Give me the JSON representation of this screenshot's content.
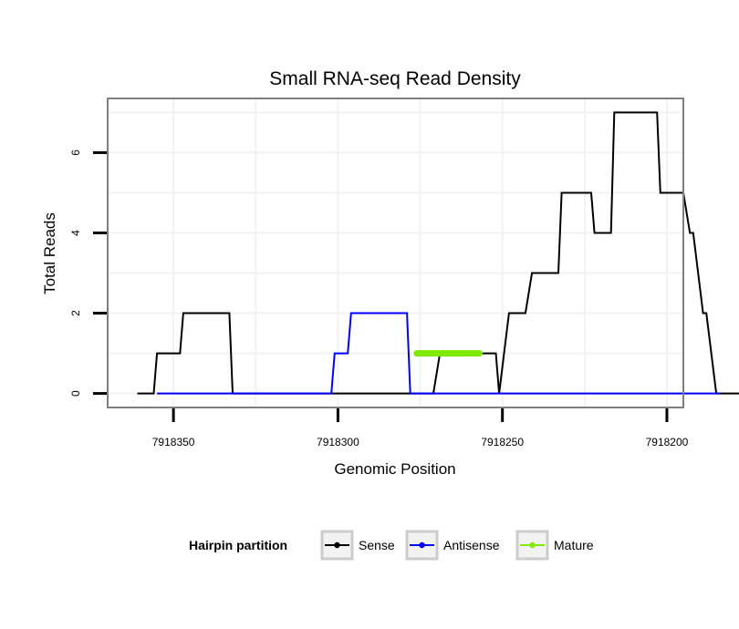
{
  "chart_data": {
    "type": "line",
    "title": "Small RNA-seq Read Density",
    "xlabel": "Genomic Position",
    "ylabel": "Total Reads",
    "xlim": [
      7918370,
      7918195
    ],
    "ylim": [
      -0.35,
      7.35
    ],
    "x_reversed": true,
    "xticks": [
      7918350,
      7918300,
      7918250,
      7918200
    ],
    "xtick_labels": [
      "7918350",
      "7918300",
      "7918250",
      "7918200"
    ],
    "yticks": [
      0,
      2,
      4,
      6
    ],
    "ytick_labels": [
      "0",
      "2",
      "4",
      "6"
    ],
    "grid": true,
    "legend": {
      "title": "Hairpin partition",
      "position": "bottom",
      "entries": [
        "Sense",
        "Antisense",
        "Mature"
      ]
    },
    "series": [
      {
        "name": "Sense",
        "color": "#000000",
        "x": [
          7918361,
          7918356,
          7918355,
          7918348,
          7918347,
          7918333,
          7918332,
          7918317,
          7918307,
          7918302,
          7918297,
          7918287,
          7918282,
          7918278,
          7918277,
          7918271,
          7918269,
          7918260,
          7918252,
          7918251,
          7918248,
          7918247,
          7918243,
          7918241,
          7918239,
          7918233,
          7918232,
          7918223,
          7918222,
          7918217,
          7918216,
          7918213,
          7918212,
          7918203,
          7918202,
          7918196,
          7918195,
          7918193,
          7918192,
          7918189,
          7918188,
          7918185,
          7918184,
          7918183,
          7918182,
          7918180,
          7918175
        ],
        "y": [
          0,
          0,
          1,
          1,
          2,
          2,
          0,
          0,
          0,
          0,
          0,
          0,
          0,
          0,
          0,
          0,
          1,
          1,
          1,
          0,
          2,
          2,
          2,
          3,
          3,
          3,
          5,
          5,
          4,
          4,
          7,
          7,
          7,
          7,
          5,
          5,
          5,
          4,
          4,
          2,
          2,
          0,
          0,
          0,
          0,
          0,
          0
        ]
      },
      {
        "name": "Antisense",
        "color": "#0000ff",
        "x": [
          7918355,
          7918323,
          7918302,
          7918301,
          7918297,
          7918296,
          7918279,
          7918278,
          7918252,
          7918248,
          7918185,
          7918184
        ],
        "y": [
          0,
          0,
          0,
          1,
          1,
          2,
          2,
          0,
          0,
          0,
          0,
          0
        ]
      },
      {
        "name": "Mature",
        "color": "#7fea00",
        "x": [
          7918276,
          7918257
        ],
        "y": [
          1,
          1
        ]
      }
    ]
  }
}
